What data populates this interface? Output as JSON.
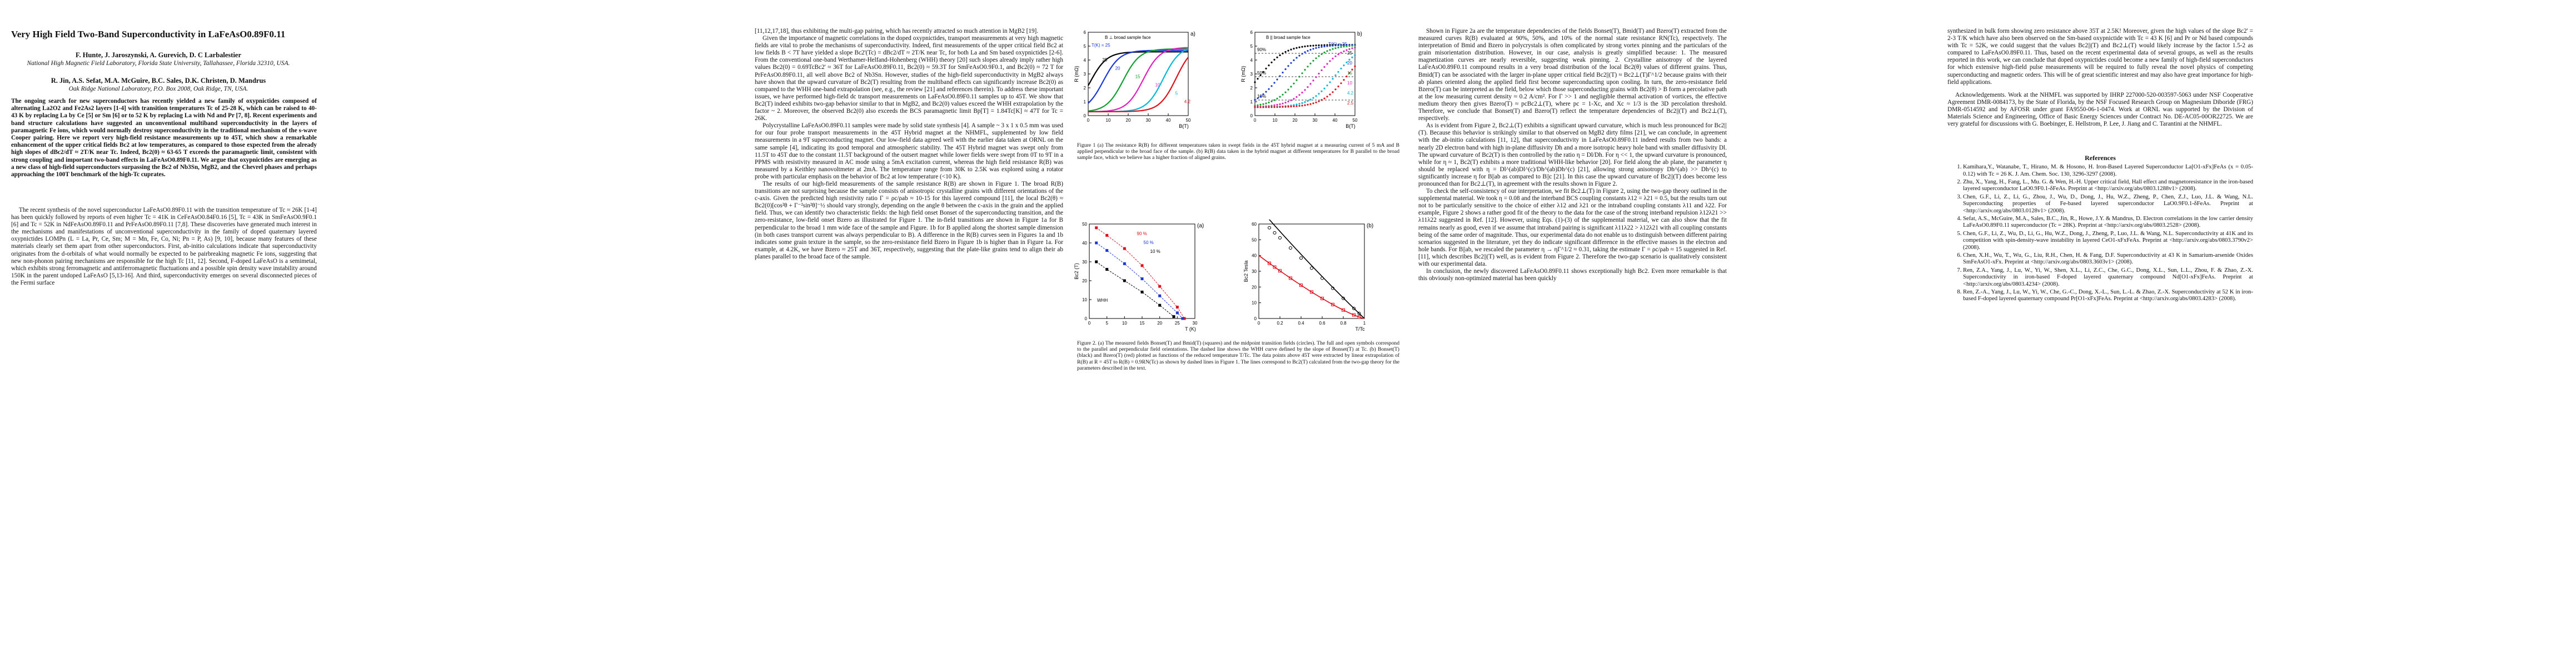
{
  "paper": {
    "title": "Very High Field Two-Band Superconductivity in LaFeAsO0.89F0.11",
    "authors_1": "F. Hunte, J. Jaroszynski, A. Gurevich, D. C Larbalestier",
    "affil_1": "National High Magnetic Field Laboratory, Florida State University, Tallahassee, Florida 32310, USA.",
    "authors_2": "R. Jin, A.S. Sefat, M.A. McGuire, B.C. Sales, D.K. Christen, D. Mandrus",
    "affil_2": "Oak Ridge National Laboratory, P.O. Box 2008, Oak Ridge, TN, USA.",
    "abstract": "The ongoing search for new superconductors has recently yielded a new family of oxypnictides composed of alternating La2O2 and Fe2As2 layers [1-4] with transition temperatures Tc of 25-28 K, which can be raised to 40-43 K by replacing La by Ce [5] or Sm [6] or to 52 K by replacing La with Nd and Pr [7, 8]. Recent experiments and band structure calculations have suggested an unconventional multiband superconductivity in the layers of paramagnetic Fe ions, which would normally destroy superconductivity in the traditional mechanism of the s-wave Cooper pairing. Here we report very high-field resistance measurements up to 45T, which show a remarkable enhancement of the upper critical fields Bc2 at low temperatures, as compared to those expected from the already high slopes of dBc2/dT ≈ 2T/K near Tc. Indeed, Bc2(0) ≈ 63-65 T exceeds the paramagnetic limit, consistent with strong coupling and important two-band effects in LaFeAsO0.89F0.11. We argue that oxypnictides are emerging as a new class of high-field superconductors surpassing the Bc2 of Nb3Sn, MgB2, and the Chevrel phases and perhaps approaching the 100T benchmark of the high-Tc cuprates.",
    "p1_body": [
      "The recent synthesis of the novel superconductor LaFeAsO0.89F0.11 with the transition temperature of Tc ≈ 26K [1-4] has been quickly followed by reports of even higher Tc = 41K in CeFeAsO0.84F0.16 [5], Tc = 43K in SmFeAsO0.9F0.1 [6] and Tc = 52K in NdFeAsO0.89F0.11 and PrFeAsO0.89F0.11 [7,8]. These discoveries have generated much interest in the mechanisms and manifestations of unconventional superconductivity in the family of doped quaternary layered oxypnictides LOMPn (L = La, Pr, Ce, Sm; M = Mn, Fe, Co, Ni; Pn = P, As) [9, 10], because many features of these materials clearly set them apart from other superconductors. First, ab-initio calculations indicate that superconductivity originates from the d-orbitals of what would normally be expected to be pairbreaking magnetic Fe ions, suggesting that new non-phonon pairing mechanisms are responsible for the high Tc [11, 12]. Second, F-doped LaFeAsO is a semimetal, which exhibits strong ferromagnetic and antiferromagnetic fluctuations and a possible spin density wave instability around 150K in the parent undoped LaFeAsO [5,13-16]. And third, superconductivity emerges on several disconnected pieces of the Fermi surface"
    ],
    "p2_col1": [
      "[11,12,17,18], thus exhibiting the multi-gap pairing, which has recently attracted so much attention in MgB2 [19].",
      "Given the importance of magnetic correlations in the doped oxypnictides, transport measurements at very high magnetic fields are vital to probe the mechanisms of superconductivity. Indeed, first measurements of the upper critical field Bc2 at low fields B < 7T have yielded a slope Bc2'(Tc) = dBc2/dT ≈ 2T/K near Tc, for both La and Sm based oxypnictides [2-6]. From the conventional one-band Werthamer-Helfand-Hohenberg (WHH) theory [20] such slopes already imply rather high values Bc2(0) = 0.69TcBc2' ≈ 36T for LaFeAsO0.89F0.11, Bc2(0) ≈ 59.3T for SmFeAsO0.9F0.1, and Bc2(0) ≈ 72 T for PrFeAsO0.89F0.11, all well above Bc2 of Nb3Sn. However, studies of the high-field superconductivity in MgB2 always have shown that the upward curvature of Bc2(T) resulting from the multiband effects can significantly increase Bc2(0) as compared to the WHH one-band extrapolation (see, e.g., the review [21] and references therein). To address these important issues, we have performed high-field dc transport measurements on LaFeAsO0.89F0.11 samples up to 45T. We show that Bc2(T) indeed exhibits two-gap behavior similar to that in MgB2, and Bc2(0) values exceed the WHH extrapolation by the factor ~ 2. Moreover, the observed Bc2(0) also exceeds the BCS paramagnetic limit Bp[T] = 1.84Tc[K] ≈ 47T for Tc = 26K.",
      "Polycrystalline LaFeAsO0.89F0.11 samples were made by solid state synthesis [4]. A sample ~ 3 x 1 x 0.5 mm was used for our four probe transport measurements in the 45T Hybrid magnet at the NHMFL, supplemented by low field measurements in a 9T superconducting magnet. Our low-field data agreed well with the earlier data taken at ORNL on the same sample [4], indicating its good temporal and atmospheric stability. The 45T Hybrid magnet was swept only from 11.5T to 45T due to the constant 11.5T background of the outsert magnet while lower fields were swept from 0T to 9T in a PPMS with resistivity measured in AC mode using a 5mA excitation current, whereas the high field resistance R(B) was measured by a Keithley nanovoltmeter at 2mA. The temperature range from 30K to 2.5K was explored using a rotator probe with particular emphasis on the behavior of Bc2 at low temperature (<10 K).",
      "The results of our high-field measurements of the sample resistance R(B) are shown in Figure 1. The broad R(B) transitions are not surprising because the sample consists of anisotropic crystalline grains with different orientations of the c-axis. Given the predicted high resistivity ratio Γ = ρc/ρab ≈ 10-15 for this layered compound [11], the local Bc2(θ) ≈ Bc2(0)[cos²θ + Γ⁻²sin²θ]⁻½ should vary strongly, depending on the angle θ between the c-axis in the grain and the applied field. Thus, we can identify two characteristic fields: the high field onset Bonset of the superconducting transition, and the zero-resistance, low-field onset Bzero as illustrated for Figure 1. The in-field transitions are shown in Figure 1a for B perpendicular to the broad 1 mm wide face of the sample and Figure. 1b for B applied along the shortest sample dimension (in both cases transport current was always perpendicular to B). A difference in the R(B) curves seen in Figures 1a and 1b indicates some grain texture in the sample, so the zero-resistance field Bzero in Figure 1b is higher than in Figure 1a. For example, at 4.2K, we have Bzero ≈ 25T and 36T, respectively, suggesting that the plate-like grains tend to align their ab planes parallel to the broad face of the sample."
    ],
    "p2_col3": [
      "Shown in Figure 2a are the temperature dependencies of the fields Bonset(T), Bmid(T) and Bzero(T) extracted from the measured curves R(B) evaluated at 90%, 50%, and 10% of the normal state resistance RN(Tc), respectively. The interpretation of Bmid and Bzero in polycrystals is often complicated by strong vortex pinning and the particulars of the grain misorientation distribution. However, in our case, analysis is greatly simplified because: 1. The measured magnetization curves are nearly reversible, suggesting weak pinning. 2. Crystalline anisotropy of the layered LaFeAsO0.89F0.11 compound results in a very broad distribution of the local Bc2(θ) values of different grains. Thus, Bmid(T) can be associated with the larger in-plane upper critical field Bc2||(T) ≈ Bc2⊥(T)Γ^1/2 because grains with their ab planes oriented along the applied field first become superconducting upon cooling. In turn, the zero-resistance field Bzero(T) can be interpreted as the field, below which those superconducting grains with Bc2(θ) > B form a percolative path at the low measuring current density ≈ 0.2 A/cm². For Γ >> 1 and negligible thermal activation of vortices, the effective medium theory then gives Bzero(T) ≈ pcBc2⊥(T), where pc = 1-Xc, and Xc ≈ 1/3 is the 3D percolation threshold. Therefore, we conclude that Bonset(T) and Bzero(T) reflect the temperature dependencies of Bc2||(T) and Bc2⊥(T), respectively.",
      "As is evident from Figure 2, Bc2⊥(T) exhibits a significant upward curvature, which is much less pronounced for Bc2||(T). Because this behavior is strikingly similar to that observed on MgB2 dirty films [21], we can conclude, in agreement with the ab-initio calculations [11, 12], that superconductivity in LaFeAsO0.89F0.11 indeed results from two bands: a nearly 2D electron band with high in-plane diffusivity Dh and a more isotropic heavy hole band with smaller diffusivity Dl. The upward curvature of Bc2(T) is then controlled by the ratio η = Dl/Dh. For η << 1, the upward curvature is pronounced, while for η ≈ 1, Bc2(T) exhibits a more traditional WHH-like behavior [20]. For field along the ab plane, the parameter η should be replaced with η = Dl^(ab)Dl^(c)/Dh^(ab)Dh^(c) [21], allowing strong anisotropy Dh^(ab) >> Dh^(c) to significantly increase η for B||ab as compared to B||c [21]. In this case the upward curvature of Bc2||(T) does become less pronounced than for Bc2⊥(T), in agreement with the results shown in Figure 2.",
      "To check the self-consistency of our interpretation, we fit Bc2⊥(T) in Figure 2, using the two-gap theory outlined in the supplemental material. We took η = 0.08 and the interband BCS coupling constants λ12 = λ21 = 0.5, but the results turn out not to be particularly sensitive to the choice of either λ12 and λ21 or the intraband coupling constants λ11 and λ22. For example, Figure 2 shows a rather good fit of the theory to the data for the case of the strong interband repulsion λ12λ21 >> λ11λ22 suggested in Ref. [12]. However, using Eqs. (1)-(3) of the supplemental material, we can also show that the fit remains nearly as good, even if we assume that intraband pairing is significant λ11λ22 > λ12λ21 with all coupling constants being of the same order of magnitude. Thus, our experimental data do not enable us to distinguish between different pairing scenarios suggested in the literature, yet they do indicate significant difference in the effective masses in the electron and hole bands. For B||ab, we rescaled the parameter η → ηΓ^1/2 ≈ 0.31, taking the estimate Γ = ρc/ρab ≈ 15 suggested in Ref. [11], which describes Bc2||(T) well, as is evident from Figure 2. Therefore the two-gap scenario is qualitatively consistent with our experimental data.",
      "In conclusion, the newly discovered LaFeAsO0.89F0.11 shows exceptionally high Bc2. Even more remarkable is that this obviously non-optimized material has been quickly"
    ],
    "p3_body": [
      "synthesized in bulk form showing zero resistance above 35T at 2.5K! Moreover, given the high values of the slope Bc2' = 2-3 T/K which have also been observed on the Sm-based oxypnictide with Tc = 43 K [6] and Pr or Nd based compounds with Tc = 52K, we could suggest that the values Bc2||(T) and Bc2⊥(T) would likely increase by the factor 1.5-2 as compared to LaFeAsO0.89F0.11. Thus, based on the recent experimental data of several groups, as well as the results reported in this work, we can conclude that doped oxypnictides could become a new family of high-field superconductors for which extensive high-field pulse measurements will be required to fully reveal the novel physics of competing superconducting and magnetic orders. This will be of great scientific interest and may also have great importance for high-field applications.",
      "Acknowledgements. Work at the NHMFL was supported by IHRP 227000-520-003597-5063 under NSF Cooperative Agreement DMR-0084173, by the State of Florida, by the NSF Focused Research Group on Magnesium Diboride (FRG) DMR-0514592 and by AFOSR under grant FA9550-06-1-0474. Work at ORNL was supported by the Division of Materials Science and Engineering, Office of Basic Energy Sciences under Contract No. DE-AC05-00OR22725. We are very grateful for discussions with G. Boebinger, E. Hellstrom, P. Lee, J. Jiang and C. Tarantini at the NHMFL."
    ],
    "refs_title": "References",
    "references": [
      "Kamihara,Y., Watanabe, T., Hirano, M. & Hosono, H. Iron-Based Layered Superconductor La[O1-xFx]FeAs (x = 0.05-0.12) with Tc = 26 K. J. Am. Chem. Soc. 130, 3296-3297 (2008).",
      "Zhu, X., Yang, H., Fang, L., Mu. G. & Wen, H.-H. Upper critical field, Hall effect and magnetoresistance in the iron-based layered superconductor LaO0.9F0.1-δFeAs. Preprint at <http://arxiv.org/abs/0803.1288v1> (2008).",
      "Chen, G.F., Li, Z., Li, G., Zhou, J., Wu, D., Dong, J., Hu, W.Z., Zheng, P., Chen, Z.J., Luo, J.L. & Wang, N.L. Superconducting properties of Fe-based layered superconductor LaO0.9F0.1-δFeAs. Preprint at <http://arxiv.org/abs/0803.0128v1> (2008).",
      "Sefat, A.S., McGuire, M.A., Sales, B.C., Jin, R., Howe, J.Y. & Mandrus, D. Electron correlations in the low carrier density LaFeAsO0.89F0.11 superconductor (Tc = 28K). Preprint at <http://arxiv.org/abs/0803.2528> (2008).",
      "Chen, G.F., Li, Z., Wu, D., Li, G., Hu, W.Z., Dong, J., Zheng, P., Luo, J.L. & Wang, N.L. Superconductivity at 41K and its competition with spin-density-wave instability in layered CeO1-xFxFeAs. Preprint at <http://arxiv.org/abs/0803.3790v2> (2008).",
      "Chen, X.H., Wu, T., Wu, G., Liu, R.H., Chen, H. & Fang, D.F. Superconductivity at 43 K in Samarium-arsenide Oxides SmFeAsO1-xFx. Preprint at <http://arxiv.org/abs/0803.3603v1> (2008).",
      "Ren, Z.A., Yang, J., Lu, W., Yi, W., Shen, X.L., Li, Z.C., Che, G.C., Dong, X.L., Sun, L.L., Zhou, F. & Zhao, Z.-X. Superconductivity in iron-based F-doped layered quaternary compound Nd[O1-xFx]FeAs. Preprint at <http://arxiv.org/abs/0803.4234> (2008).",
      "Ren, Z.-A., Yang, J., Lu, W., Yi, W., Che, G.-C., Dong, X.-L., Sun, L.-L. & Zhao, Z.-X. Superconductivity at 52 K in iron-based F-doped layered quaternary compound Pr[O1-xFx]FeAs. Preprint at <http://arxiv.org/abs/0803.4283> (2008)."
    ],
    "fig1": {
      "a_label": "a)",
      "b_label": "b)",
      "a_title": "B ⊥ broad sample face",
      "b_title": "B || broad sample face",
      "a_tc_label": "T(K) = 25",
      "b_tc_label": "T(K) = 25",
      "a_ylabel": "R (mΩ)",
      "b_ylabel": "R (mΩ)",
      "a_xlabel": "B(T)",
      "b_xlabel": "B(T)",
      "a_temps": [
        "25",
        "20",
        "15",
        "10",
        "5",
        "4.2"
      ],
      "b_temps": [
        "25",
        "20",
        "15",
        "10",
        "4.2",
        "2.5"
      ],
      "b_pcts": [
        "90%",
        "50%",
        "10%"
      ],
      "a_xticks": [
        "0",
        "10",
        "20",
        "30",
        "40",
        "50"
      ],
      "b_xticks": [
        "0",
        "10",
        "20",
        "30",
        "40",
        "50"
      ],
      "a_yticks": [
        "0",
        "1",
        "2",
        "3",
        "4",
        "5",
        "6"
      ],
      "b_yticks": [
        "0",
        "1",
        "2",
        "3",
        "4",
        "5",
        "6"
      ],
      "caption": "Figure 1 (a) The resistance R(B) for different temperatures taken in swept fields in the 45T hybrid magnet at a measuring current of 5 mA and B applied perpendicular to the broad face of the sample. (b) R(B) data taken in the hybrid magnet at different temperatures for B parallel to the broad sample face, which we believe has a higher fraction of aligned grains."
    },
    "fig2": {
      "a_label": "(a)",
      "b_label": "(b)",
      "a_ylabel": "Bc2 (T)",
      "b_ylabel": "Bc2 Tesla",
      "a_xlabel": "T (K)",
      "b_xlabel": "T/Tc",
      "a_series": [
        "90 %",
        "50 %",
        "10 %"
      ],
      "a_whh": "WHH",
      "a_xticks": [
        "0",
        "5",
        "10",
        "15",
        "20",
        "25",
        "30"
      ],
      "a_yticks": [
        "0",
        "10",
        "20",
        "30",
        "40",
        "50"
      ],
      "b_xticks": [
        "0",
        "0.2",
        "0.4",
        "0.6",
        "0.8",
        "1"
      ],
      "b_yticks": [
        "0",
        "10",
        "20",
        "30",
        "40",
        "50",
        "60"
      ],
      "caption": "Figure 2. (a) The measured fields Bonset(T) and Bmid(T) (squares) and the midpoint transition fields (circles). The full and open symbols correspond to the parallel and perpendicular field orientations. The dashed line shows the WHH curve defined by the slope of Bonset(T) at Tc. (b) Bonset(T) (black) and Bzero(T) (red) plotted as functions of the reduced temperature T/Tc. The data points above 45T were extracted by linear extrapolation of R(B) at R = 45T to R(B) = 0.9RN(Tc) as shown by dashed lines in Figure 1. The lines correspond to Bc2(T) calculated from the two-gap theory for the parameters described in the text."
    }
  },
  "colors": {
    "black": "#000000",
    "red": "#e0101a",
    "blue": "#1a38d8",
    "magenta": "#e020c0",
    "cyan": "#00b8d8",
    "green": "#10a030",
    "orange": "#e88010"
  }
}
